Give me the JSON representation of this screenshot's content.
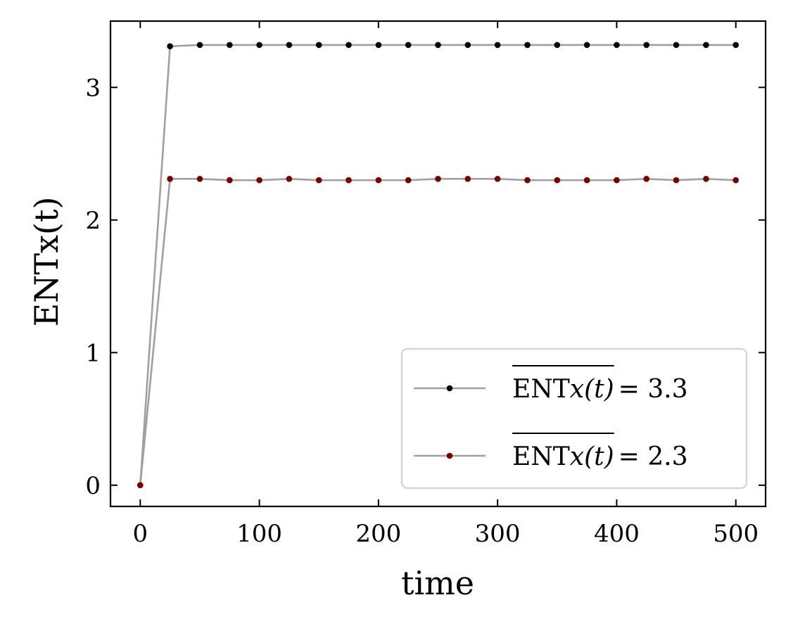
{
  "chart_data": {
    "type": "line",
    "xlabel": "time",
    "ylabel": "ENTx(t)",
    "xlim": [
      -25,
      525
    ],
    "ylim": [
      -0.16,
      3.5
    ],
    "xticks": [
      0,
      100,
      200,
      300,
      400,
      500
    ],
    "yticks": [
      0,
      1,
      2,
      3
    ],
    "grid": false,
    "legend_position": "lower-right",
    "x": [
      0,
      25,
      50,
      75,
      100,
      125,
      150,
      175,
      200,
      225,
      250,
      275,
      300,
      325,
      350,
      375,
      400,
      425,
      450,
      475,
      500
    ],
    "series": [
      {
        "name": "ENTx(t) = 3.3",
        "legend_parts": {
          "overlined": "ENTx(t)",
          "suffix": "= 3.3"
        },
        "marker_color": "#000000",
        "line_color": "#a0a0a0",
        "values": [
          0,
          3.31,
          3.32,
          3.32,
          3.32,
          3.32,
          3.32,
          3.32,
          3.32,
          3.32,
          3.32,
          3.32,
          3.32,
          3.32,
          3.32,
          3.32,
          3.32,
          3.32,
          3.32,
          3.32,
          3.32
        ]
      },
      {
        "name": "ENTx(t) = 2.3",
        "legend_parts": {
          "overlined": "ENTx(t)",
          "suffix": "= 2.3"
        },
        "marker_color": "#7a0000",
        "line_color": "#a0a0a0",
        "values": [
          0,
          2.31,
          2.31,
          2.3,
          2.3,
          2.31,
          2.3,
          2.3,
          2.3,
          2.3,
          2.31,
          2.31,
          2.31,
          2.3,
          2.3,
          2.3,
          2.3,
          2.31,
          2.3,
          2.31,
          2.3
        ]
      }
    ]
  }
}
